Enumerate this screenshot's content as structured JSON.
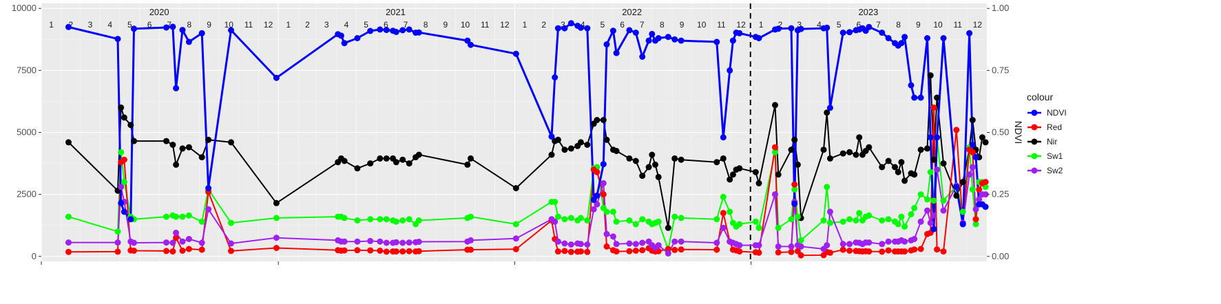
{
  "chart_data": {
    "type": "line",
    "ylabel_right": "NDVI",
    "y_left": {
      "ticks": [
        0,
        2500,
        5000,
        7500,
        10000
      ],
      "tick_labels": [
        "0",
        "2500",
        "5000",
        "7500",
        "10000"
      ],
      "ylim": [
        -200,
        10200
      ]
    },
    "y_right": {
      "ticks": [
        0,
        0.25,
        0.5,
        0.75,
        1.0
      ],
      "tick_labels": [
        "0.00",
        "0.25",
        "0.50",
        "0.75",
        "1.00"
      ]
    },
    "x_range": [
      "2020-01-01",
      "2023-12-31"
    ],
    "year_labels": [
      {
        "label": "2020",
        "date": "2020-07-01"
      },
      {
        "label": "2021",
        "date": "2021-07-01"
      },
      {
        "label": "2022",
        "date": "2022-07-01"
      },
      {
        "label": "2023",
        "date": "2023-07-01"
      }
    ],
    "month_labels": [
      "1",
      "2",
      "3",
      "4",
      "5",
      "6",
      "7",
      "8",
      "9",
      "10",
      "11",
      "12"
    ],
    "vline_date": "2022-12-31",
    "grid": true,
    "legend": {
      "title": "colour",
      "position": "right",
      "items": [
        {
          "name": "NDVI",
          "color": "#0000ff"
        },
        {
          "name": "Red",
          "color": "#ff0000"
        },
        {
          "name": "Nir",
          "color": "#000000"
        },
        {
          "name": "Sw1",
          "color": "#00ff00"
        },
        {
          "name": "Sw2",
          "color": "#a020f0"
        }
      ]
    },
    "dates": [
      "2020-02-12",
      "2020-04-28",
      "2020-05-03",
      "2020-05-08",
      "2020-05-18",
      "2020-05-23",
      "2020-07-12",
      "2020-07-22",
      "2020-07-27",
      "2020-08-06",
      "2020-08-16",
      "2020-09-05",
      "2020-09-15",
      "2020-10-20",
      "2020-12-29",
      "2021-04-03",
      "2021-04-08",
      "2021-04-13",
      "2021-05-03",
      "2021-05-23",
      "2021-06-07",
      "2021-06-17",
      "2021-06-27",
      "2021-07-02",
      "2021-07-12",
      "2021-07-22",
      "2021-08-01",
      "2021-08-06",
      "2021-10-20",
      "2021-10-25",
      "2022-01-03",
      "2022-02-27",
      "2022-03-04",
      "2022-03-09",
      "2022-03-19",
      "2022-03-29",
      "2022-04-08",
      "2022-04-13",
      "2022-04-23",
      "2022-05-03",
      "2022-05-08",
      "2022-05-18",
      "2022-05-23",
      "2022-06-02",
      "2022-06-07",
      "2022-06-27",
      "2022-07-07",
      "2022-07-17",
      "2022-07-27",
      "2022-08-01",
      "2022-08-06",
      "2022-08-11",
      "2022-08-26",
      "2022-09-05",
      "2022-09-15",
      "2022-11-09",
      "2022-11-19",
      "2022-11-29",
      "2022-12-04",
      "2022-12-09",
      "2022-12-14",
      "2023-01-08",
      "2023-01-13",
      "2023-02-07",
      "2023-02-12",
      "2023-03-04",
      "2023-03-09",
      "2023-03-14",
      "2023-03-19",
      "2023-04-23",
      "2023-04-28",
      "2023-05-03",
      "2023-05-23",
      "2023-06-02",
      "2023-06-12",
      "2023-06-17",
      "2023-06-22",
      "2023-06-27",
      "2023-07-02",
      "2023-07-22",
      "2023-08-01",
      "2023-08-11",
      "2023-08-16",
      "2023-08-21",
      "2023-08-26",
      "2023-09-05",
      "2023-09-10",
      "2023-09-20",
      "2023-09-30",
      "2023-10-05",
      "2023-10-10",
      "2023-10-15",
      "2023-10-25",
      "2023-11-14",
      "2023-11-24",
      "2023-12-04",
      "2023-12-09",
      "2023-12-14",
      "2023-12-19",
      "2023-12-24",
      "2023-12-29"
    ],
    "series": [
      {
        "name": "NDVI",
        "axis": "right",
        "color": "#0000ff",
        "width": 3,
        "values": [
          0.925,
          0.877,
          0.215,
          0.18,
          0.15,
          0.918,
          0.923,
          0.926,
          0.678,
          0.913,
          0.865,
          0.9,
          0.275,
          0.912,
          0.72,
          0.896,
          0.89,
          0.86,
          0.88,
          0.909,
          0.915,
          0.913,
          0.91,
          0.905,
          0.912,
          0.915,
          0.902,
          0.903,
          0.87,
          0.853,
          0.817,
          0.483,
          0.722,
          0.92,
          0.92,
          0.94,
          0.93,
          0.922,
          0.92,
          0.228,
          0.245,
          0.372,
          0.855,
          0.91,
          0.82,
          0.912,
          0.902,
          0.805,
          0.87,
          0.897,
          0.87,
          0.88,
          0.885,
          0.875,
          0.87,
          0.865,
          0.48,
          0.75,
          0.87,
          0.902,
          0.9,
          0.885,
          0.88,
          0.915,
          0.918,
          0.92,
          0.212,
          0.912,
          0.917,
          0.92,
          0.922,
          0.599,
          0.902,
          0.904,
          0.912,
          0.915,
          0.92,
          0.91,
          0.925,
          0.902,
          0.88,
          0.86,
          0.85,
          0.86,
          0.885,
          0.69,
          0.64,
          0.64,
          0.88,
          0.48,
          0.11,
          0.48,
          0.88,
          0.28,
          0.13,
          0.9,
          0.45,
          0.4,
          0.21,
          0.21,
          0.2
        ]
      },
      {
        "name": "Red",
        "axis": "left",
        "color": "#ff0000",
        "width": 2,
        "values": [
          180,
          190,
          3800,
          3900,
          240,
          230,
          220,
          200,
          750,
          230,
          300,
          270,
          2600,
          220,
          340,
          250,
          230,
          240,
          250,
          240,
          230,
          190,
          200,
          200,
          200,
          210,
          200,
          210,
          270,
          270,
          290,
          1450,
          700,
          200,
          220,
          180,
          190,
          200,
          180,
          3500,
          3400,
          2500,
          400,
          250,
          200,
          210,
          230,
          250,
          330,
          230,
          200,
          210,
          300,
          260,
          280,
          270,
          1750,
          600,
          270,
          240,
          200,
          170,
          150,
          4400,
          160,
          180,
          2900,
          210,
          40,
          50,
          180,
          150,
          270,
          230,
          220,
          210,
          200,
          210,
          200,
          190,
          240,
          200,
          200,
          200,
          200,
          240,
          280,
          300,
          900,
          950,
          6000,
          280,
          200,
          5100,
          1300,
          4300,
          4200,
          1500,
          2700,
          2950,
          3000
        ]
      },
      {
        "name": "Nir",
        "axis": "left",
        "color": "#000000",
        "width": 2,
        "values": [
          4600,
          2650,
          6000,
          5600,
          5300,
          4650,
          4650,
          4500,
          3700,
          4350,
          4400,
          4000,
          4700,
          4600,
          2150,
          3800,
          3950,
          3850,
          3550,
          3750,
          3950,
          3950,
          3950,
          3800,
          3900,
          3750,
          4000,
          4100,
          3700,
          3950,
          2750,
          4100,
          4650,
          4700,
          4300,
          4350,
          4450,
          4600,
          4500,
          5350,
          5500,
          5500,
          4700,
          4300,
          4250,
          3950,
          3850,
          3250,
          3600,
          4100,
          3700,
          3200,
          1150,
          3950,
          3900,
          3800,
          3950,
          3100,
          3300,
          3500,
          3550,
          3400,
          2950,
          6100,
          3300,
          4300,
          4700,
          3700,
          1550,
          4300,
          5800,
          3950,
          4150,
          4200,
          4100,
          4800,
          4100,
          4250,
          4400,
          3600,
          3850,
          3600,
          3400,
          3800,
          3050,
          3350,
          3300,
          4300,
          4350,
          7300,
          3900,
          6400,
          3750,
          2450,
          3000,
          4350,
          5500,
          4300,
          4000,
          4800,
          4600
        ]
      },
      {
        "name": "Sw1",
        "axis": "left",
        "color": "#00ff00",
        "width": 2,
        "values": [
          1600,
          1000,
          4200,
          3000,
          1600,
          1500,
          1600,
          1650,
          1600,
          1600,
          1650,
          1400,
          2700,
          1350,
          1550,
          1600,
          1600,
          1550,
          1450,
          1500,
          1500,
          1500,
          1450,
          1400,
          1450,
          1500,
          1300,
          1450,
          1550,
          1600,
          1300,
          2200,
          2200,
          1600,
          1500,
          1550,
          1450,
          1550,
          1450,
          3550,
          3600,
          1950,
          1800,
          1800,
          1400,
          1450,
          1300,
          1500,
          1400,
          1300,
          1350,
          1400,
          270,
          1600,
          1550,
          1500,
          2400,
          1800,
          1350,
          1200,
          1300,
          1400,
          1150,
          4200,
          1150,
          1500,
          2700,
          1600,
          650,
          1450,
          2800,
          1350,
          1400,
          1500,
          1450,
          1750,
          1450,
          1600,
          1650,
          1450,
          1500,
          1400,
          1300,
          1600,
          1200,
          1700,
          1950,
          2500,
          2300,
          3400,
          2250,
          4800,
          2250,
          2850,
          1800,
          4400,
          2700,
          1300,
          3000,
          3000,
          2800
        ]
      },
      {
        "name": "Sw2",
        "axis": "left",
        "color": "#a020f0",
        "width": 2,
        "values": [
          560,
          560,
          2800,
          2200,
          600,
          550,
          560,
          550,
          950,
          600,
          700,
          550,
          1900,
          520,
          750,
          650,
          600,
          600,
          600,
          620,
          600,
          550,
          550,
          570,
          550,
          560,
          570,
          590,
          600,
          650,
          720,
          1500,
          1400,
          600,
          520,
          480,
          520,
          500,
          480,
          1900,
          2100,
          2950,
          900,
          800,
          500,
          520,
          500,
          550,
          600,
          450,
          350,
          450,
          120,
          600,
          600,
          550,
          1150,
          600,
          550,
          500,
          450,
          450,
          450,
          2500,
          400,
          400,
          2200,
          450,
          400,
          300,
          450,
          1800,
          500,
          500,
          560,
          550,
          500,
          560,
          560,
          500,
          600,
          600,
          600,
          650,
          600,
          650,
          700,
          1400,
          1850,
          1350,
          1650,
          3500,
          1850,
          2850,
          1350,
          3300,
          3600,
          1900,
          2300,
          2500,
          2500
        ]
      }
    ]
  }
}
